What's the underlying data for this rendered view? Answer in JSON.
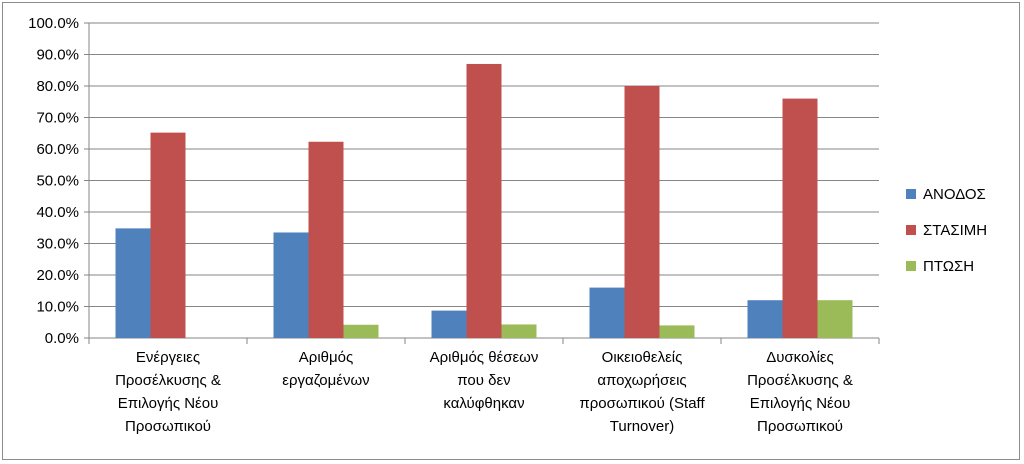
{
  "chart_data": {
    "type": "bar",
    "title": "",
    "xlabel": "",
    "ylabel": "",
    "ylim": [
      0,
      100
    ],
    "y_ticks": [
      "0.0%",
      "10.0%",
      "20.0%",
      "30.0%",
      "40.0%",
      "50.0%",
      "60.0%",
      "70.0%",
      "80.0%",
      "90.0%",
      "100.0%"
    ],
    "grid": true,
    "legend_position": "right",
    "categories": [
      [
        "Ενέργειες",
        "Προσέλκυσης &",
        "Επιλογής Νέου",
        "Προσωπικού"
      ],
      [
        "Αριθμός",
        "εργαζομένων"
      ],
      [
        "Αριθμός θέσεων",
        "που δεν",
        "καλύφθηκαν"
      ],
      [
        "Οικειοθελείς",
        "αποχωρήσεις",
        "προσωπικού (Staff",
        "Turnover)"
      ],
      [
        "Δυσκολίες",
        "Προσέλκυσης &",
        "Επιλογής Νέου",
        "Προσωπικού"
      ]
    ],
    "series": [
      {
        "name": "ΑΝΟΔΟΣ",
        "color": "#4f81bd",
        "values": [
          34.8,
          33.5,
          8.7,
          16.0,
          12.0
        ]
      },
      {
        "name": "ΣΤΑΣΙΜΗ",
        "color": "#c0504d",
        "values": [
          65.2,
          62.3,
          87.0,
          80.0,
          76.0
        ]
      },
      {
        "name": "ΠΤΩΣΗ",
        "color": "#9bbb59",
        "values": [
          0.0,
          4.2,
          4.3,
          4.0,
          12.0
        ]
      }
    ]
  }
}
